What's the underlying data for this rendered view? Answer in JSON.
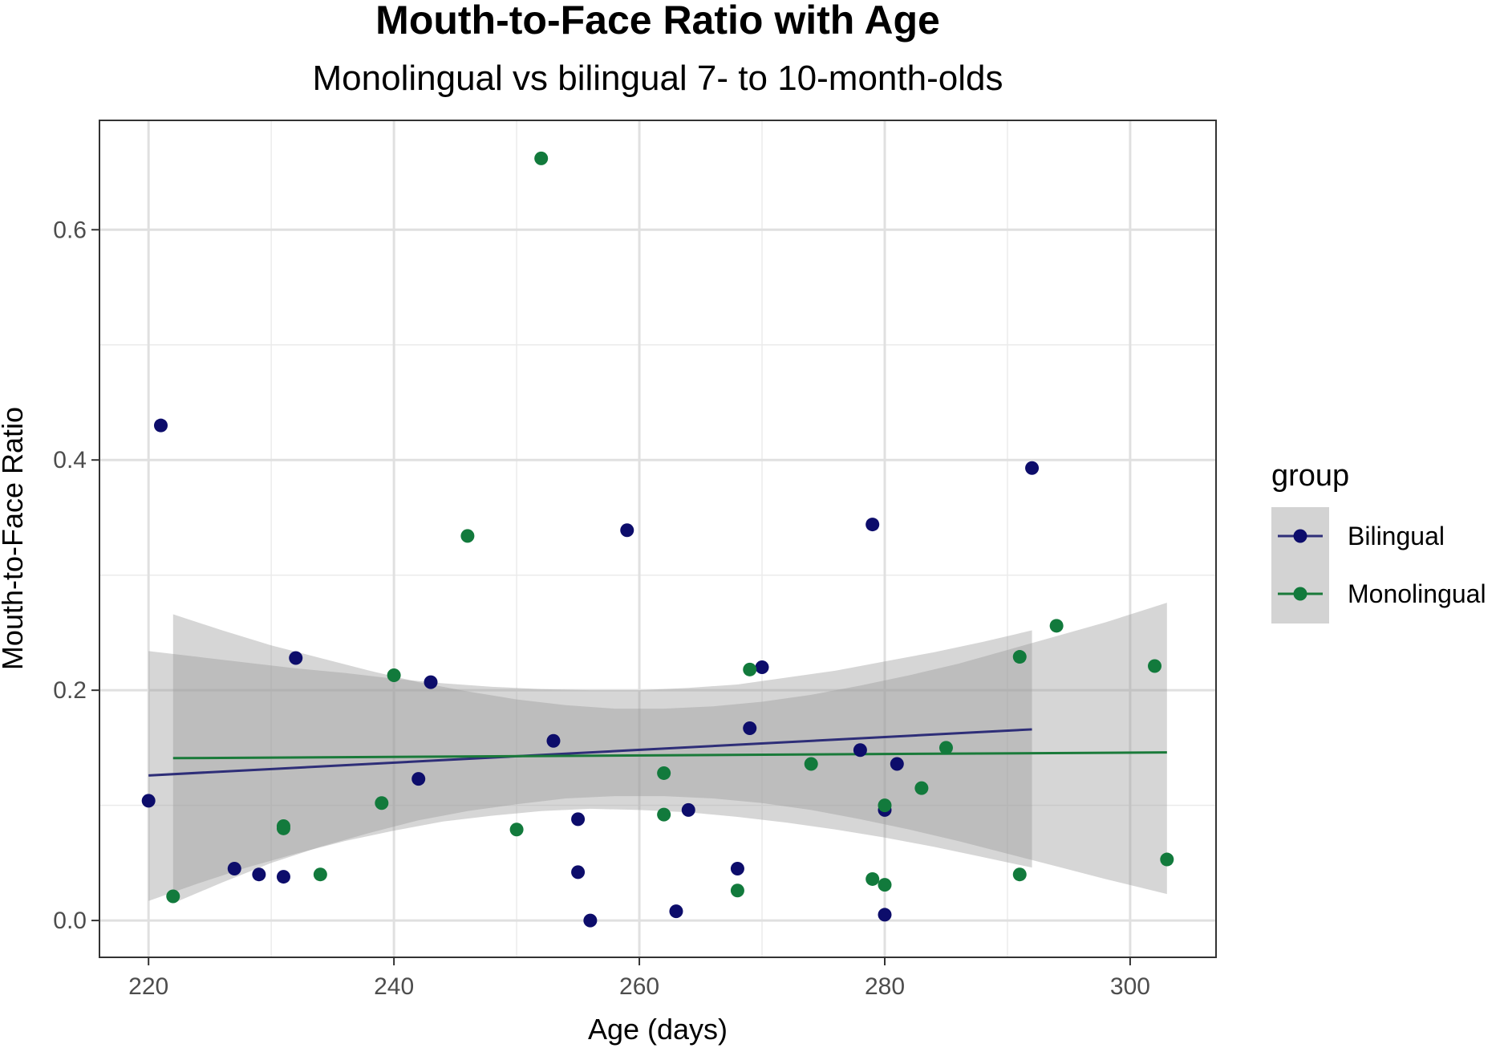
{
  "chart_data": {
    "type": "scatter",
    "title": "Mouth-to-Face Ratio with Age",
    "subtitle": "Monolingual vs bilingual 7- to 10-month-olds",
    "xlabel": "Age (days)",
    "ylabel": "Mouth-to-Face Ratio",
    "xlim": [
      216,
      307
    ],
    "ylim": [
      -0.032,
      0.695
    ],
    "x_ticks": [
      220,
      240,
      260,
      280,
      300
    ],
    "y_ticks": [
      0.0,
      0.2,
      0.4,
      0.6
    ],
    "x_tick_labels": [
      "220",
      "240",
      "260",
      "280",
      "300"
    ],
    "y_tick_labels": [
      "0.0",
      "0.2",
      "0.4",
      "0.6"
    ],
    "grid": true,
    "legend_title": "group",
    "legend_placement": "right",
    "series": [
      {
        "name": "Bilingual",
        "color": "#0d0d6b",
        "line_color": "#2e2e78",
        "points": [
          [
            220,
            0.104
          ],
          [
            221,
            0.43
          ],
          [
            227,
            0.045
          ],
          [
            229,
            0.04
          ],
          [
            231,
            0.038
          ],
          [
            232,
            0.228
          ],
          [
            242,
            0.123
          ],
          [
            243,
            0.207
          ],
          [
            253,
            0.156
          ],
          [
            255,
            0.088
          ],
          [
            255,
            0.042
          ],
          [
            256,
            0.0
          ],
          [
            259,
            0.339
          ],
          [
            263,
            0.008
          ],
          [
            264,
            0.096
          ],
          [
            268,
            0.045
          ],
          [
            269,
            0.167
          ],
          [
            270,
            0.22
          ],
          [
            278,
            0.148
          ],
          [
            279,
            0.344
          ],
          [
            280,
            0.096
          ],
          [
            280,
            0.005
          ],
          [
            281,
            0.136
          ],
          [
            292,
            0.393
          ]
        ],
        "fit": {
          "x": [
            220,
            292
          ],
          "y": [
            0.126,
            0.166
          ]
        },
        "ci": {
          "x": [
            220,
            224,
            228,
            232,
            236,
            240,
            244,
            248,
            252,
            256,
            260,
            264,
            268,
            272,
            276,
            280,
            284,
            288,
            292
          ],
          "lower": [
            0.017,
            0.032,
            0.046,
            0.058,
            0.069,
            0.078,
            0.086,
            0.091,
            0.095,
            0.097,
            0.096,
            0.094,
            0.09,
            0.085,
            0.079,
            0.072,
            0.064,
            0.055,
            0.046
          ],
          "upper": [
            0.234,
            0.229,
            0.224,
            0.219,
            0.215,
            0.21,
            0.206,
            0.203,
            0.201,
            0.2,
            0.2,
            0.202,
            0.205,
            0.211,
            0.217,
            0.225,
            0.233,
            0.242,
            0.252
          ]
        }
      },
      {
        "name": "Monolingual",
        "color": "#127a3c",
        "line_color": "#1a7a3a",
        "points": [
          [
            222,
            0.021
          ],
          [
            231,
            0.082
          ],
          [
            231,
            0.08
          ],
          [
            234,
            0.04
          ],
          [
            239,
            0.102
          ],
          [
            240,
            0.213
          ],
          [
            246,
            0.334
          ],
          [
            250,
            0.079
          ],
          [
            252,
            0.662
          ],
          [
            262,
            0.128
          ],
          [
            262,
            0.092
          ],
          [
            268,
            0.026
          ],
          [
            269,
            0.218
          ],
          [
            274,
            0.136
          ],
          [
            279,
            0.036
          ],
          [
            280,
            0.1
          ],
          [
            280,
            0.031
          ],
          [
            283,
            0.115
          ],
          [
            285,
            0.15
          ],
          [
            291,
            0.229
          ],
          [
            291,
            0.04
          ],
          [
            294,
            0.256
          ],
          [
            302,
            0.221
          ],
          [
            303,
            0.053
          ]
        ],
        "fit": {
          "x": [
            222,
            303
          ],
          "y": [
            0.141,
            0.146
          ]
        },
        "ci": {
          "x": [
            222,
            226,
            230,
            234,
            238,
            242,
            246,
            250,
            254,
            258,
            262,
            266,
            270,
            274,
            278,
            282,
            286,
            290,
            294,
            298,
            303
          ],
          "lower": [
            0.015,
            0.033,
            0.05,
            0.064,
            0.076,
            0.087,
            0.095,
            0.101,
            0.106,
            0.108,
            0.108,
            0.106,
            0.102,
            0.096,
            0.088,
            0.079,
            0.069,
            0.058,
            0.047,
            0.036,
            0.023
          ],
          "upper": [
            0.266,
            0.252,
            0.239,
            0.228,
            0.217,
            0.207,
            0.199,
            0.192,
            0.187,
            0.184,
            0.184,
            0.186,
            0.19,
            0.196,
            0.204,
            0.213,
            0.223,
            0.235,
            0.247,
            0.259,
            0.276
          ]
        }
      }
    ]
  }
}
